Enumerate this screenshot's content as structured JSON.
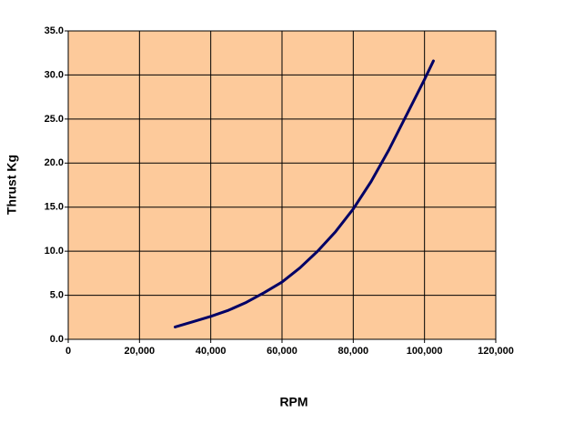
{
  "chart_data": {
    "type": "line",
    "x_label": "RPM",
    "y_label": "Thrust Kg",
    "x": [
      30000,
      35000,
      40000,
      45000,
      50000,
      55000,
      60000,
      65000,
      70000,
      75000,
      80000,
      85000,
      90000,
      95000,
      100000,
      102500
    ],
    "values": [
      1.4,
      2.0,
      2.6,
      3.3,
      4.2,
      5.3,
      6.5,
      8.1,
      10.0,
      12.2,
      14.8,
      17.9,
      21.5,
      25.5,
      29.5,
      31.6
    ],
    "color": "#000066",
    "background": "#fdca9b",
    "grid": true,
    "xlim": [
      0,
      120000
    ],
    "xticks": [
      0,
      {
        "value": 20000,
        "label": "20,000"
      },
      {
        "value": 40000,
        "label": "40,000"
      },
      {
        "value": 60000,
        "label": "60,000"
      },
      {
        "value": 80000,
        "label": "80,000"
      },
      {
        "value": 100000,
        "label": "100,000"
      },
      {
        "value": 120000,
        "label": "120,000"
      }
    ],
    "ylim": [
      0,
      35
    ],
    "yticks": [
      {
        "value": 0,
        "label": "0.0"
      },
      {
        "value": 5,
        "label": "5.0"
      },
      {
        "value": 10,
        "label": "10.0"
      },
      {
        "value": 15,
        "label": "15.0"
      },
      {
        "value": 20,
        "label": "20.0"
      },
      {
        "value": 25,
        "label": "25.0"
      },
      {
        "value": 30,
        "label": "30.0"
      },
      {
        "value": 35,
        "label": "35.0"
      }
    ]
  }
}
